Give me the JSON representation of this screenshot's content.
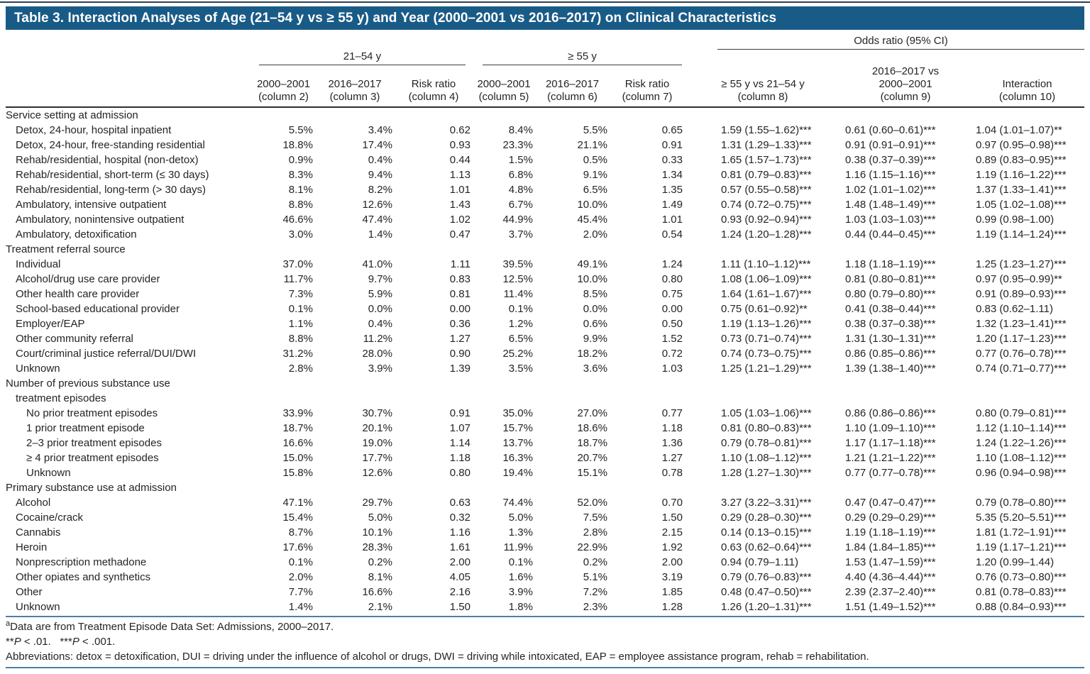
{
  "title": "Table 3. Interaction Analyses of Age (21–54 y vs ≥ 55 y) and Year (2000–2001 vs 2016–2017) on Clinical Characteristics",
  "colors": {
    "title_bar": "#195b87",
    "rule_blue": "#4d7fa9",
    "rule_dark": "#2e2e2e"
  },
  "header": {
    "odds_ratio": "Odds ratio (95% CI)",
    "age_group_1": "21–54 y",
    "age_group_2": "≥ 55 y",
    "columns": [
      {
        "lines": [
          "2000–2001",
          "(column 2)"
        ]
      },
      {
        "lines": [
          "2016–2017",
          "(column 3)"
        ]
      },
      {
        "lines": [
          "Risk ratio",
          "(column 4)"
        ]
      },
      {
        "lines": [
          "2000–2001",
          "(column 5)"
        ]
      },
      {
        "lines": [
          "2016–2017",
          "(column 6)"
        ]
      },
      {
        "lines": [
          "Risk ratio",
          "(column 7)"
        ]
      },
      {
        "lines": [
          "≥ 55 y vs 21–54 y",
          "(column 8)"
        ]
      },
      {
        "lines": [
          "2016–2017 vs",
          "2000–2001",
          "(column 9)"
        ]
      },
      {
        "lines": [
          "Interaction",
          "(column 10)"
        ]
      }
    ]
  },
  "sections": [
    {
      "header_lines": [
        "Service setting at admission"
      ],
      "row_indent": 1,
      "rows": [
        {
          "label": "Detox, 24-hour, hospital inpatient",
          "values": [
            "5.5%",
            "3.4%",
            "0.62",
            "8.4%",
            "5.5%",
            "0.65",
            "1.59 (1.55–1.62)***",
            "0.61 (0.60–0.61)***",
            "1.04 (1.01–1.07)**"
          ]
        },
        {
          "label": "Detox, 24-hour, free-standing residential",
          "values": [
            "18.8%",
            "17.4%",
            "0.93",
            "23.3%",
            "21.1%",
            "0.91",
            "1.31 (1.29–1.33)***",
            "0.91 (0.91–0.91)***",
            "0.97 (0.95–0.98)***"
          ]
        },
        {
          "label": "Rehab/residential, hospital (non-detox)",
          "values": [
            "0.9%",
            "0.4%",
            "0.44",
            "1.5%",
            "0.5%",
            "0.33",
            "1.65 (1.57–1.73)***",
            "0.38 (0.37–0.39)***",
            "0.89 (0.83–0.95)***"
          ]
        },
        {
          "label": "Rehab/residential, short-term (≤ 30 days)",
          "values": [
            "8.3%",
            "9.4%",
            "1.13",
            "6.8%",
            "9.1%",
            "1.34",
            "0.81 (0.79–0.83)***",
            "1.16 (1.15–1.16)***",
            "1.19 (1.16–1.22)***"
          ]
        },
        {
          "label": "Rehab/residential, long-term (> 30 days)",
          "values": [
            "8.1%",
            "8.2%",
            "1.01",
            "4.8%",
            "6.5%",
            "1.35",
            "0.57 (0.55–0.58)***",
            "1.02 (1.01–1.02)***",
            "1.37 (1.33–1.41)***"
          ]
        },
        {
          "label": "Ambulatory, intensive outpatient",
          "values": [
            "8.8%",
            "12.6%",
            "1.43",
            "6.7%",
            "10.0%",
            "1.49",
            "0.74 (0.72–0.75)***",
            "1.48 (1.48–1.49)***",
            "1.05 (1.02–1.08)***"
          ]
        },
        {
          "label": "Ambulatory, nonintensive outpatient",
          "values": [
            "46.6%",
            "47.4%",
            "1.02",
            "44.9%",
            "45.4%",
            "1.01",
            "0.93 (0.92–0.94)***",
            "1.03 (1.03–1.03)***",
            "0.99 (0.98–1.00)"
          ]
        },
        {
          "label": "Ambulatory, detoxification",
          "values": [
            "3.0%",
            "1.4%",
            "0.47",
            "3.7%",
            "2.0%",
            "0.54",
            "1.24 (1.20–1.28)***",
            "0.44 (0.44–0.45)***",
            "1.19 (1.14–1.24)***"
          ]
        }
      ]
    },
    {
      "header_lines": [
        "Treatment referral source"
      ],
      "row_indent": 1,
      "rows": [
        {
          "label": "Individual",
          "values": [
            "37.0%",
            "41.0%",
            "1.11",
            "39.5%",
            "49.1%",
            "1.24",
            "1.11 (1.10–1.12)***",
            "1.18 (1.18–1.19)***",
            "1.25 (1.23–1.27)***"
          ]
        },
        {
          "label": "Alcohol/drug use care provider",
          "values": [
            "11.7%",
            "9.7%",
            "0.83",
            "12.5%",
            "10.0%",
            "0.80",
            "1.08 (1.06–1.09)***",
            "0.81 (0.80–0.81)***",
            "0.97 (0.95–0.99)**"
          ]
        },
        {
          "label": "Other health care provider",
          "values": [
            "7.3%",
            "5.9%",
            "0.81",
            "11.4%",
            "8.5%",
            "0.75",
            "1.64 (1.61–1.67)***",
            "0.80 (0.79–0.80)***",
            "0.91 (0.89–0.93)***"
          ]
        },
        {
          "label": "School-based educational provider",
          "values": [
            "0.1%",
            "0.0%",
            "0.00",
            "0.1%",
            "0.0%",
            "0.00",
            "0.75 (0.61–0.92)**",
            "0.41 (0.38–0.44)***",
            "0.83 (0.62–1.11)"
          ]
        },
        {
          "label": "Employer/EAP",
          "values": [
            "1.1%",
            "0.4%",
            "0.36",
            "1.2%",
            "0.6%",
            "0.50",
            "1.19 (1.13–1.26)***",
            "0.38 (0.37–0.38)***",
            "1.32 (1.23–1.41)***"
          ]
        },
        {
          "label": "Other community referral",
          "values": [
            "8.8%",
            "11.2%",
            "1.27",
            "6.5%",
            "9.9%",
            "1.52",
            "0.73 (0.71–0.74)***",
            "1.31 (1.30–1.31)***",
            "1.20 (1.17–1.23)***"
          ]
        },
        {
          "label": "Court/criminal justice referral/DUI/DWI",
          "values": [
            "31.2%",
            "28.0%",
            "0.90",
            "25.2%",
            "18.2%",
            "0.72",
            "0.74 (0.73–0.75)***",
            "0.86 (0.85–0.86)***",
            "0.77 (0.76–0.78)***"
          ]
        },
        {
          "label": "Unknown",
          "values": [
            "2.8%",
            "3.9%",
            "1.39",
            "3.5%",
            "3.6%",
            "1.03",
            "1.25 (1.21–1.29)***",
            "1.39 (1.38–1.40)***",
            "0.74 (0.71–0.77)***"
          ]
        }
      ]
    },
    {
      "header_lines": [
        "Number of previous substance use",
        "treatment episodes"
      ],
      "row_indent": 2,
      "rows": [
        {
          "label": "No prior treatment episodes",
          "values": [
            "33.9%",
            "30.7%",
            "0.91",
            "35.0%",
            "27.0%",
            "0.77",
            "1.05 (1.03–1.06)***",
            "0.86 (0.86–0.86)***",
            "0.80 (0.79–0.81)***"
          ]
        },
        {
          "label": "1 prior treatment episode",
          "values": [
            "18.7%",
            "20.1%",
            "1.07",
            "15.7%",
            "18.6%",
            "1.18",
            "0.81 (0.80–0.83)***",
            "1.10 (1.09–1.10)***",
            "1.12 (1.10–1.14)***"
          ]
        },
        {
          "label": "2–3 prior treatment episodes",
          "values": [
            "16.6%",
            "19.0%",
            "1.14",
            "13.7%",
            "18.7%",
            "1.36",
            "0.79 (0.78–0.81)***",
            "1.17 (1.17–1.18)***",
            "1.24 (1.22–1.26)***"
          ]
        },
        {
          "label": "≥ 4 prior treatment episodes",
          "values": [
            "15.0%",
            "17.7%",
            "1.18",
            "16.3%",
            "20.7%",
            "1.27",
            "1.10 (1.08–1.12)***",
            "1.21 (1.21–1.22)***",
            "1.10 (1.08–1.12)***"
          ]
        },
        {
          "label": "Unknown",
          "values": [
            "15.8%",
            "12.6%",
            "0.80",
            "19.4%",
            "15.1%",
            "0.78",
            "1.28 (1.27–1.30)***",
            "0.77 (0.77–0.78)***",
            "0.96 (0.94–0.98)***"
          ]
        }
      ]
    },
    {
      "header_lines": [
        "Primary substance use at admission"
      ],
      "row_indent": 1,
      "rows": [
        {
          "label": "Alcohol",
          "values": [
            "47.1%",
            "29.7%",
            "0.63",
            "74.4%",
            "52.0%",
            "0.70",
            "3.27 (3.22–3.31)***",
            "0.47 (0.47–0.47)***",
            "0.79 (0.78–0.80)***"
          ]
        },
        {
          "label": "Cocaine/crack",
          "values": [
            "15.4%",
            "5.0%",
            "0.32",
            "5.0%",
            "7.5%",
            "1.50",
            "0.29 (0.28–0.30)***",
            "0.29 (0.29–0.29)***",
            "5.35 (5.20–5.51)***"
          ]
        },
        {
          "label": "Cannabis",
          "values": [
            "8.7%",
            "10.1%",
            "1.16",
            "1.3%",
            "2.8%",
            "2.15",
            "0.14 (0.13–0.15)***",
            "1.19 (1.18–1.19)***",
            "1.81 (1.72–1.91)***"
          ]
        },
        {
          "label": "Heroin",
          "values": [
            "17.6%",
            "28.3%",
            "1.61",
            "11.9%",
            "22.9%",
            "1.92",
            "0.63 (0.62–0.64)***",
            "1.84 (1.84–1.85)***",
            "1.19 (1.17–1.21)***"
          ]
        },
        {
          "label": "Nonprescription methadone",
          "values": [
            "0.1%",
            "0.2%",
            "2.00",
            "0.1%",
            "0.2%",
            "2.00",
            "0.94 (0.79–1.11)",
            "1.53 (1.47–1.59)***",
            "1.20 (0.99–1.44)"
          ]
        },
        {
          "label": "Other opiates and synthetics",
          "values": [
            "2.0%",
            "8.1%",
            "4.05",
            "1.6%",
            "5.1%",
            "3.19",
            "0.79 (0.76–0.83)***",
            "4.40 (4.36–4.44)***",
            "0.76 (0.73–0.80)***"
          ]
        },
        {
          "label": "Other",
          "values": [
            "7.7%",
            "16.6%",
            "2.16",
            "3.9%",
            "7.2%",
            "1.85",
            "0.48 (0.47–0.50)***",
            "2.39 (2.37–2.40)***",
            "0.81 (0.78–0.83)***"
          ]
        },
        {
          "label": "Unknown",
          "values": [
            "1.4%",
            "2.1%",
            "1.50",
            "1.8%",
            "2.3%",
            "1.28",
            "1.26 (1.20–1.31)***",
            "1.51 (1.49–1.52)***",
            "0.88 (0.84–0.93)***"
          ]
        }
      ]
    }
  ],
  "footnotes": {
    "source_sup": "a",
    "source_text": "Data are from Treatment Episode Data Set: Admissions, 2000–2017.",
    "significance_segments": [
      {
        "text": "**"
      },
      {
        "text": "P",
        "italic": true
      },
      {
        "text": " < .01.   "
      },
      {
        "text": "***"
      },
      {
        "text": "P",
        "italic": true
      },
      {
        "text": " < .001."
      }
    ],
    "abbreviations": "Abbreviations: detox = detoxification, DUI = driving under the influence of alcohol or drugs, DWI = driving while intoxicated, EAP = employee assistance program, rehab = rehabilitation."
  }
}
